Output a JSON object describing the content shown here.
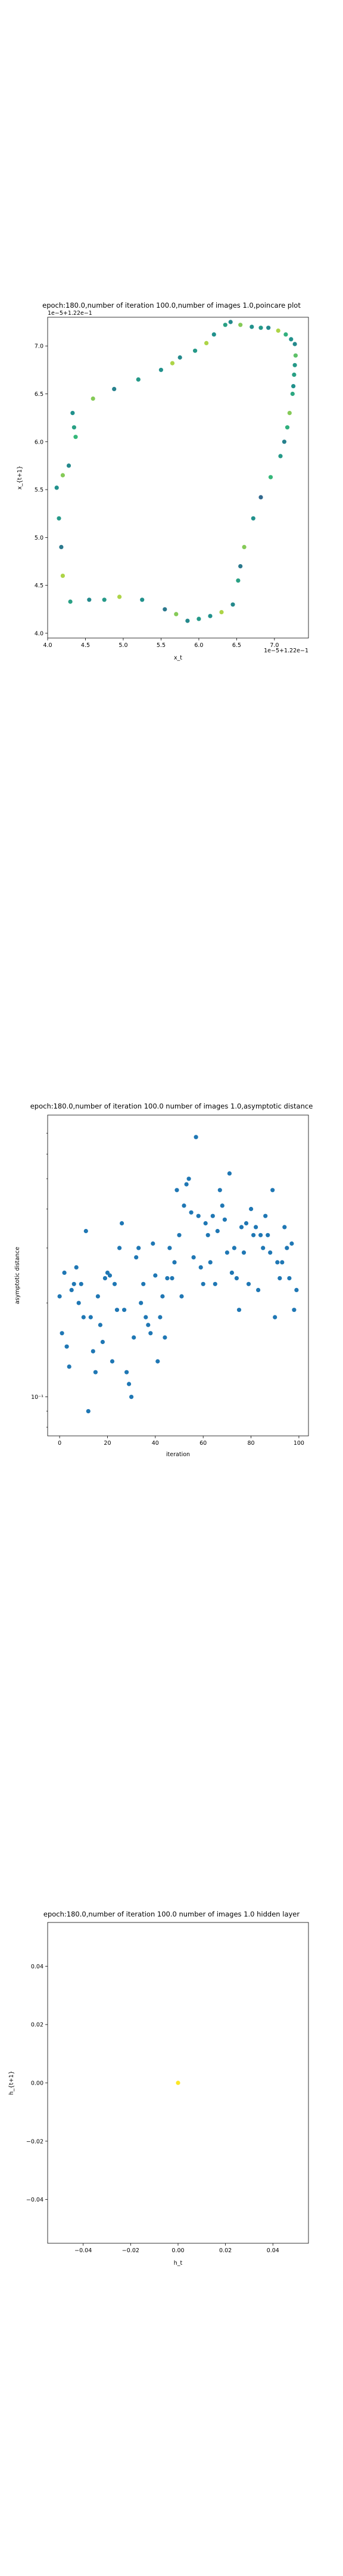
{
  "chart_data": [
    {
      "type": "scatter",
      "title": "epoch:180.0,number of iteration 100.0,number of images 1.0,poincare plot",
      "xlabel": "x_t",
      "ylabel": "x_{t+1}",
      "x_offset_label": "1e−5+1.22e−1",
      "y_offset_label": "1e−5+1.22e−1",
      "xlim": [
        4.0,
        7.45
      ],
      "ylim": [
        3.95,
        7.3
      ],
      "x_ticks": [
        4.0,
        4.5,
        5.0,
        5.5,
        6.0,
        6.5,
        7.0
      ],
      "x_tick_labels": [
        "4.0",
        "4.5",
        "5.0",
        "5.5",
        "6.0",
        "6.5",
        "7.0"
      ],
      "y_ticks": [
        4.0,
        4.5,
        5.0,
        5.5,
        6.0,
        6.5,
        7.0
      ],
      "y_tick_labels": [
        "4.0",
        "4.5",
        "5.0",
        "5.5",
        "6.0",
        "6.5",
        "7.0"
      ],
      "color_scale": [
        "#440154",
        "#31688e",
        "#21918c",
        "#35b779",
        "#fde725"
      ],
      "points": [
        {
          "x": 6.42,
          "y": 7.25,
          "c": 0.45
        },
        {
          "x": 6.55,
          "y": 7.22,
          "c": 0.85
        },
        {
          "x": 6.7,
          "y": 7.2,
          "c": 0.5
        },
        {
          "x": 6.82,
          "y": 7.19,
          "c": 0.55
        },
        {
          "x": 6.92,
          "y": 7.19,
          "c": 0.45
        },
        {
          "x": 7.05,
          "y": 7.16,
          "c": 0.9
        },
        {
          "x": 7.15,
          "y": 7.12,
          "c": 0.7
        },
        {
          "x": 7.22,
          "y": 7.07,
          "c": 0.5
        },
        {
          "x": 7.27,
          "y": 7.02,
          "c": 0.45
        },
        {
          "x": 7.28,
          "y": 6.9,
          "c": 0.8
        },
        {
          "x": 7.27,
          "y": 6.8,
          "c": 0.55
        },
        {
          "x": 7.26,
          "y": 6.7,
          "c": 0.6
        },
        {
          "x": 7.25,
          "y": 6.58,
          "c": 0.5
        },
        {
          "x": 7.24,
          "y": 6.5,
          "c": 0.65
        },
        {
          "x": 7.2,
          "y": 6.3,
          "c": 0.85
        },
        {
          "x": 7.17,
          "y": 6.15,
          "c": 0.7
        },
        {
          "x": 7.13,
          "y": 6.0,
          "c": 0.4
        },
        {
          "x": 7.08,
          "y": 5.85,
          "c": 0.55
        },
        {
          "x": 6.95,
          "y": 5.63,
          "c": 0.75
        },
        {
          "x": 6.82,
          "y": 5.42,
          "c": 0.25
        },
        {
          "x": 6.72,
          "y": 5.2,
          "c": 0.5
        },
        {
          "x": 6.6,
          "y": 4.9,
          "c": 0.85
        },
        {
          "x": 6.55,
          "y": 4.7,
          "c": 0.35
        },
        {
          "x": 6.52,
          "y": 4.55,
          "c": 0.6
        },
        {
          "x": 6.45,
          "y": 4.3,
          "c": 0.45
        },
        {
          "x": 6.3,
          "y": 4.22,
          "c": 0.9
        },
        {
          "x": 6.15,
          "y": 4.18,
          "c": 0.5
        },
        {
          "x": 6.0,
          "y": 4.15,
          "c": 0.55
        },
        {
          "x": 5.85,
          "y": 4.13,
          "c": 0.45
        },
        {
          "x": 5.7,
          "y": 4.2,
          "c": 0.85
        },
        {
          "x": 5.55,
          "y": 4.25,
          "c": 0.35
        },
        {
          "x": 5.25,
          "y": 4.35,
          "c": 0.5
        },
        {
          "x": 4.95,
          "y": 4.38,
          "c": 0.9
        },
        {
          "x": 4.75,
          "y": 4.35,
          "c": 0.55
        },
        {
          "x": 4.55,
          "y": 4.35,
          "c": 0.45
        },
        {
          "x": 4.3,
          "y": 4.33,
          "c": 0.6
        },
        {
          "x": 4.2,
          "y": 4.6,
          "c": 0.9
        },
        {
          "x": 4.18,
          "y": 4.9,
          "c": 0.35
        },
        {
          "x": 4.15,
          "y": 5.2,
          "c": 0.55
        },
        {
          "x": 4.12,
          "y": 5.52,
          "c": 0.5
        },
        {
          "x": 4.2,
          "y": 5.65,
          "c": 0.85
        },
        {
          "x": 4.28,
          "y": 5.75,
          "c": 0.45
        },
        {
          "x": 4.37,
          "y": 6.05,
          "c": 0.75
        },
        {
          "x": 4.35,
          "y": 6.15,
          "c": 0.6
        },
        {
          "x": 4.33,
          "y": 6.3,
          "c": 0.5
        },
        {
          "x": 4.6,
          "y": 6.45,
          "c": 0.85
        },
        {
          "x": 4.88,
          "y": 6.55,
          "c": 0.4
        },
        {
          "x": 5.2,
          "y": 6.65,
          "c": 0.55
        },
        {
          "x": 5.5,
          "y": 6.75,
          "c": 0.5
        },
        {
          "x": 5.65,
          "y": 6.82,
          "c": 0.9
        },
        {
          "x": 5.75,
          "y": 6.88,
          "c": 0.45
        },
        {
          "x": 5.95,
          "y": 6.95,
          "c": 0.55
        },
        {
          "x": 6.1,
          "y": 7.03,
          "c": 0.9
        },
        {
          "x": 6.2,
          "y": 7.12,
          "c": 0.5
        },
        {
          "x": 6.35,
          "y": 7.22,
          "c": 0.6
        }
      ]
    },
    {
      "type": "scatter",
      "title": "epoch:180.0,number of iteration 100.0  number of images 1.0,asymptotic distance",
      "xlabel": "iteration",
      "ylabel": "asymptotic distance",
      "y_scale": "log",
      "xlim": [
        -5,
        104
      ],
      "ylim": [
        0.075,
        0.8
      ],
      "x_ticks": [
        0,
        20,
        40,
        60,
        80,
        100
      ],
      "x_tick_labels": [
        "0",
        "20",
        "40",
        "60",
        "80",
        "100"
      ],
      "y_ticks": [
        0.1
      ],
      "y_tick_labels": [
        "10⁻¹"
      ],
      "point_color": "#1f77b4",
      "points": [
        {
          "x": 0,
          "y": 0.21
        },
        {
          "x": 1,
          "y": 0.16
        },
        {
          "x": 2,
          "y": 0.25
        },
        {
          "x": 3,
          "y": 0.145
        },
        {
          "x": 4,
          "y": 0.125
        },
        {
          "x": 5,
          "y": 0.22
        },
        {
          "x": 6,
          "y": 0.23
        },
        {
          "x": 7,
          "y": 0.26
        },
        {
          "x": 8,
          "y": 0.2
        },
        {
          "x": 9,
          "y": 0.23
        },
        {
          "x": 10,
          "y": 0.18
        },
        {
          "x": 11,
          "y": 0.34
        },
        {
          "x": 12,
          "y": 0.09
        },
        {
          "x": 13,
          "y": 0.18
        },
        {
          "x": 14,
          "y": 0.14
        },
        {
          "x": 15,
          "y": 0.12
        },
        {
          "x": 16,
          "y": 0.21
        },
        {
          "x": 17,
          "y": 0.17
        },
        {
          "x": 18,
          "y": 0.15
        },
        {
          "x": 19,
          "y": 0.24
        },
        {
          "x": 20,
          "y": 0.25
        },
        {
          "x": 21,
          "y": 0.245
        },
        {
          "x": 22,
          "y": 0.13
        },
        {
          "x": 23,
          "y": 0.23
        },
        {
          "x": 24,
          "y": 0.19
        },
        {
          "x": 25,
          "y": 0.3
        },
        {
          "x": 26,
          "y": 0.36
        },
        {
          "x": 27,
          "y": 0.19
        },
        {
          "x": 28,
          "y": 0.12
        },
        {
          "x": 29,
          "y": 0.11
        },
        {
          "x": 30,
          "y": 0.1
        },
        {
          "x": 31,
          "y": 0.155
        },
        {
          "x": 32,
          "y": 0.28
        },
        {
          "x": 33,
          "y": 0.3
        },
        {
          "x": 34,
          "y": 0.2
        },
        {
          "x": 35,
          "y": 0.23
        },
        {
          "x": 36,
          "y": 0.18
        },
        {
          "x": 37,
          "y": 0.17
        },
        {
          "x": 38,
          "y": 0.16
        },
        {
          "x": 39,
          "y": 0.31
        },
        {
          "x": 40,
          "y": 0.245
        },
        {
          "x": 41,
          "y": 0.13
        },
        {
          "x": 42,
          "y": 0.18
        },
        {
          "x": 43,
          "y": 0.21
        },
        {
          "x": 44,
          "y": 0.155
        },
        {
          "x": 45,
          "y": 0.24
        },
        {
          "x": 46,
          "y": 0.3
        },
        {
          "x": 47,
          "y": 0.24
        },
        {
          "x": 48,
          "y": 0.27
        },
        {
          "x": 49,
          "y": 0.46
        },
        {
          "x": 50,
          "y": 0.33
        },
        {
          "x": 51,
          "y": 0.21
        },
        {
          "x": 52,
          "y": 0.41
        },
        {
          "x": 53,
          "y": 0.48
        },
        {
          "x": 54,
          "y": 0.5
        },
        {
          "x": 55,
          "y": 0.39
        },
        {
          "x": 56,
          "y": 0.28
        },
        {
          "x": 57,
          "y": 0.68
        },
        {
          "x": 58,
          "y": 0.38
        },
        {
          "x": 59,
          "y": 0.26
        },
        {
          "x": 60,
          "y": 0.23
        },
        {
          "x": 61,
          "y": 0.36
        },
        {
          "x": 62,
          "y": 0.33
        },
        {
          "x": 63,
          "y": 0.27
        },
        {
          "x": 64,
          "y": 0.38
        },
        {
          "x": 65,
          "y": 0.23
        },
        {
          "x": 66,
          "y": 0.34
        },
        {
          "x": 67,
          "y": 0.46
        },
        {
          "x": 68,
          "y": 0.41
        },
        {
          "x": 69,
          "y": 0.37
        },
        {
          "x": 70,
          "y": 0.29
        },
        {
          "x": 71,
          "y": 0.52
        },
        {
          "x": 72,
          "y": 0.25
        },
        {
          "x": 73,
          "y": 0.3
        },
        {
          "x": 74,
          "y": 0.24
        },
        {
          "x": 75,
          "y": 0.19
        },
        {
          "x": 76,
          "y": 0.35
        },
        {
          "x": 77,
          "y": 0.29
        },
        {
          "x": 78,
          "y": 0.36
        },
        {
          "x": 79,
          "y": 0.23
        },
        {
          "x": 80,
          "y": 0.4
        },
        {
          "x": 81,
          "y": 0.33
        },
        {
          "x": 82,
          "y": 0.35
        },
        {
          "x": 83,
          "y": 0.22
        },
        {
          "x": 84,
          "y": 0.33
        },
        {
          "x": 85,
          "y": 0.3
        },
        {
          "x": 86,
          "y": 0.38
        },
        {
          "x": 87,
          "y": 0.33
        },
        {
          "x": 88,
          "y": 0.29
        },
        {
          "x": 89,
          "y": 0.46
        },
        {
          "x": 90,
          "y": 0.18
        },
        {
          "x": 91,
          "y": 0.27
        },
        {
          "x": 92,
          "y": 0.24
        },
        {
          "x": 93,
          "y": 0.27
        },
        {
          "x": 94,
          "y": 0.35
        },
        {
          "x": 95,
          "y": 0.3
        },
        {
          "x": 96,
          "y": 0.24
        },
        {
          "x": 97,
          "y": 0.31
        },
        {
          "x": 98,
          "y": 0.19
        },
        {
          "x": 99,
          "y": 0.22
        }
      ]
    },
    {
      "type": "scatter",
      "title": "epoch:180.0,number of iteration 100.0  number of images 1.0 hidden layer",
      "xlabel": "h_t",
      "ylabel": "h_{t+1}",
      "xlim": [
        -0.055,
        0.055
      ],
      "ylim": [
        -0.055,
        0.055
      ],
      "x_ticks": [
        -0.04,
        -0.02,
        0.0,
        0.02,
        0.04
      ],
      "x_tick_labels": [
        "−0.04",
        "−0.02",
        "0.00",
        "0.02",
        "0.04"
      ],
      "y_ticks": [
        -0.04,
        -0.02,
        0.0,
        0.02,
        0.04
      ],
      "y_tick_labels": [
        "−0.04",
        "−0.02",
        "0.00",
        "0.02",
        "0.04"
      ],
      "point_color": "#fde725",
      "points": [
        {
          "x": 0.0,
          "y": 0.0
        }
      ]
    }
  ]
}
